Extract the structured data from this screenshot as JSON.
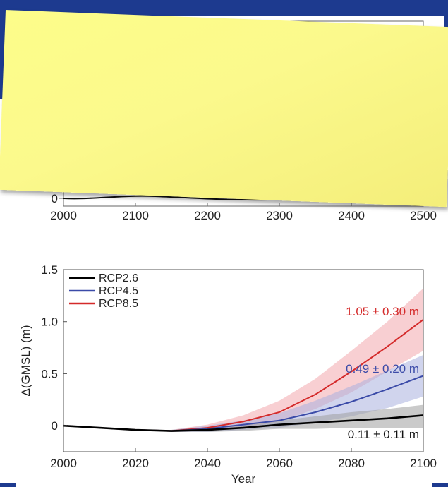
{
  "top_panel": {
    "x_ticks": [
      "2000",
      "2100",
      "2200",
      "2300",
      "2400",
      "2500"
    ],
    "y_ticks": [
      "0"
    ]
  },
  "chart_data": {
    "type": "line",
    "xlabel": "Year",
    "ylabel": "Δ(GMSL) (m)",
    "xlim": [
      2000,
      2100
    ],
    "ylim": [
      -0.25,
      1.5
    ],
    "x_ticks": [
      2000,
      2020,
      2040,
      2060,
      2080,
      2100
    ],
    "y_ticks": [
      0,
      0.5,
      1.0,
      1.5
    ],
    "y_tick_labels": [
      "0",
      "0.5",
      "1.0",
      "1.5"
    ],
    "legend_position": "top-left",
    "x": [
      2000,
      2010,
      2020,
      2030,
      2040,
      2050,
      2060,
      2070,
      2080,
      2090,
      2100
    ],
    "series": [
      {
        "name": "RCP2.6",
        "color": "#000000",
        "band_color": "#9e9e9e",
        "values": [
          0,
          -0.02,
          -0.04,
          -0.05,
          -0.04,
          -0.02,
          0.01,
          0.03,
          0.05,
          0.07,
          0.1
        ],
        "upper": [
          0,
          -0.02,
          -0.04,
          -0.04,
          -0.02,
          0.01,
          0.05,
          0.09,
          0.13,
          0.16,
          0.2
        ],
        "lower": [
          0,
          -0.02,
          -0.04,
          -0.06,
          -0.06,
          -0.05,
          -0.03,
          -0.03,
          -0.02,
          -0.02,
          -0.02
        ],
        "annotation": "0.11 ± 0.11 m"
      },
      {
        "name": "RCP4.5",
        "color": "#3b4ba8",
        "band_color": "#aab0de",
        "values": [
          0,
          -0.02,
          -0.04,
          -0.05,
          -0.03,
          0.01,
          0.05,
          0.13,
          0.23,
          0.35,
          0.48
        ],
        "upper": [
          0,
          -0.02,
          -0.04,
          -0.04,
          0.0,
          0.05,
          0.12,
          0.24,
          0.38,
          0.53,
          0.68
        ],
        "lower": [
          0,
          -0.02,
          -0.04,
          -0.06,
          -0.06,
          -0.04,
          -0.02,
          0.03,
          0.09,
          0.17,
          0.28
        ],
        "annotation": "0.49 ± 0.20 m"
      },
      {
        "name": "RCP8.5",
        "color": "#d42a2a",
        "band_color": "#f2a8ad",
        "values": [
          0,
          -0.02,
          -0.04,
          -0.05,
          -0.02,
          0.04,
          0.13,
          0.3,
          0.52,
          0.76,
          1.02
        ],
        "upper": [
          0,
          -0.02,
          -0.04,
          -0.04,
          0.01,
          0.1,
          0.24,
          0.45,
          0.72,
          1.0,
          1.32
        ],
        "lower": [
          0,
          -0.02,
          -0.04,
          -0.06,
          -0.05,
          -0.02,
          0.04,
          0.16,
          0.32,
          0.52,
          0.72
        ],
        "annotation": "1.05 ± 0.30 m"
      }
    ]
  }
}
